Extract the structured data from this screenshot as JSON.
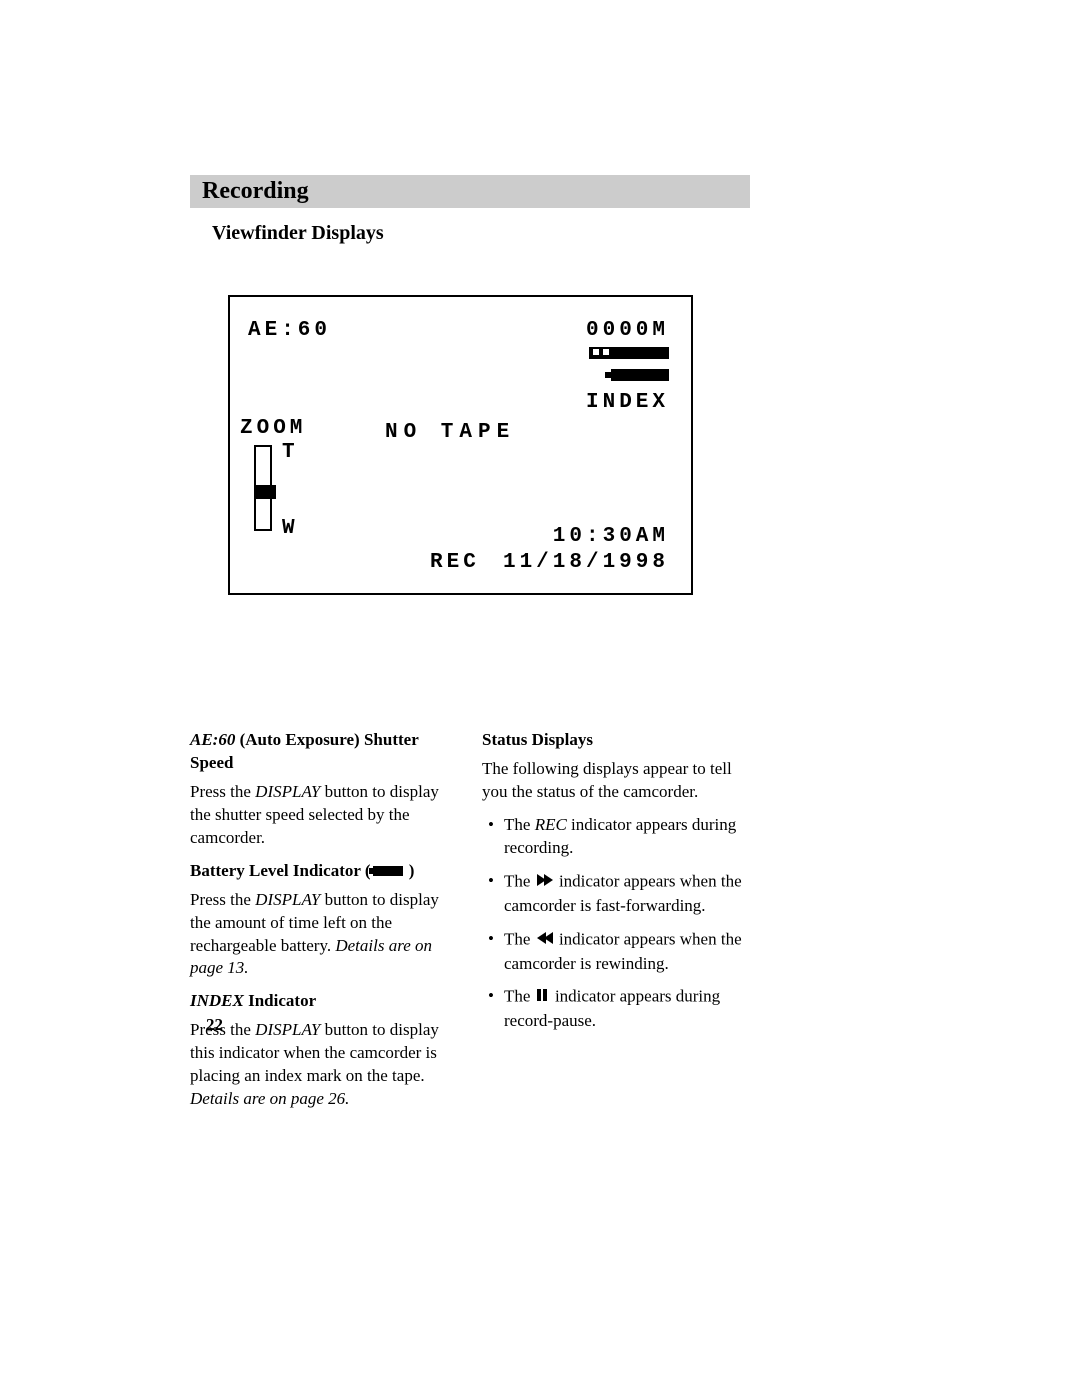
{
  "banner": {
    "title": "Recording"
  },
  "subtitle": "Viewfinder Displays",
  "viewfinder": {
    "ae": "AE:60",
    "counter": "0000M",
    "index": "INDEX",
    "zoom": "ZOOM",
    "t": "T",
    "w": "W",
    "no_tape": "NO TAPE",
    "rec": "REC",
    "time": "10:30AM",
    "date": "11/18/1998"
  },
  "left_col": {
    "h1_ital": "AE:60",
    "h1_rest": " (Auto Exposure) Shutter Speed",
    "p1a": "Press the ",
    "p1b": "DISPLAY",
    "p1c": " button to display the shutter speed selected by the camcorder.",
    "h2": "Battery Level Indicator (",
    "h2_close": " )",
    "p2a": "Press the ",
    "p2b": "DISPLAY",
    "p2c": " button to display the amount of time left on the rechargeable battery.  ",
    "p2d": "Details are on page 13.",
    "h3_ital": "INDEX",
    "h3_rest": " Indicator",
    "p3a": "Press the ",
    "p3b": "DISPLAY",
    "p3c": " button to display this indicator when the camcorder is placing an index mark on the tape.  ",
    "p3d": "Details are on page 26."
  },
  "right_col": {
    "h1": "Status Displays",
    "p1": "The following displays appear to tell you the status of the camcorder.",
    "li1a": "The ",
    "li1b": "REC",
    "li1c": " indicator appears during recording.",
    "li2a": "The  ",
    "li2b": " indicator appears when the camcorder is fast-forwarding.",
    "li3a": "The  ",
    "li3b": " indicator appears when the camcorder is rewinding.",
    "li4a": "The ",
    "li4b": " indicator appears during record-pause."
  },
  "page_number": "22"
}
